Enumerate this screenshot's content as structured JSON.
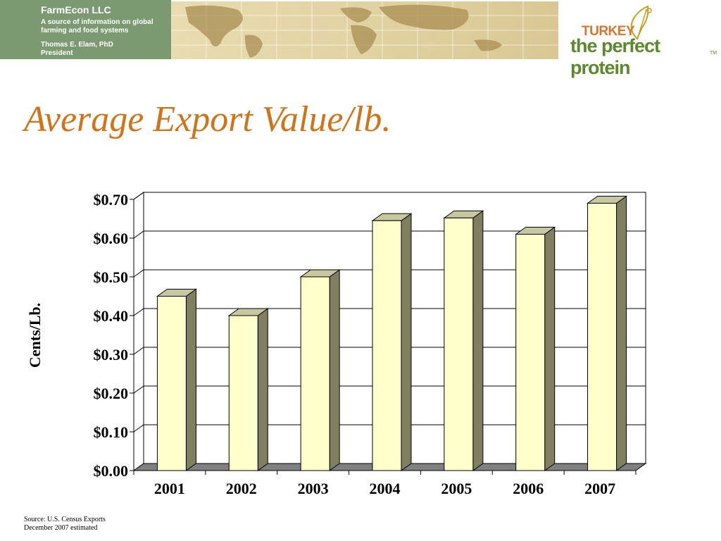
{
  "header": {
    "company": "FarmEcon LLC",
    "tagline": "A source of information on global farming and food systems",
    "author_name": "Thomas E. Elam, PhD",
    "author_title": "President"
  },
  "logo": {
    "top_word": "TURKEY",
    "main_words": "the perfect protein",
    "tm": "TM"
  },
  "slide": {
    "title": "Average Export Value/lb."
  },
  "chart_data": {
    "type": "bar",
    "style": "3d",
    "categories": [
      "2001",
      "2002",
      "2003",
      "2004",
      "2005",
      "2006",
      "2007"
    ],
    "values": [
      0.45,
      0.4,
      0.5,
      0.645,
      0.652,
      0.61,
      0.69
    ],
    "ylabel": "Cents/Lb.",
    "xlabel": "",
    "ylim": [
      0,
      0.7
    ],
    "yticks": [
      0,
      0.1,
      0.2,
      0.3,
      0.4,
      0.5,
      0.6,
      0.7
    ],
    "ytick_labels": [
      "$0.00",
      "$0.10",
      "$0.20",
      "$0.30",
      "$0.40",
      "$0.50",
      "$0.60",
      "$0.70"
    ],
    "grid": true,
    "legend": "none",
    "colors": {
      "bar_front": "#ffffcc",
      "bar_side": "#808060",
      "bar_top": "#c8c8a0",
      "floor": "#808080"
    }
  },
  "source": {
    "line1": "Source:  U.S. Census Exports",
    "line2": "December 2007 estimated"
  }
}
